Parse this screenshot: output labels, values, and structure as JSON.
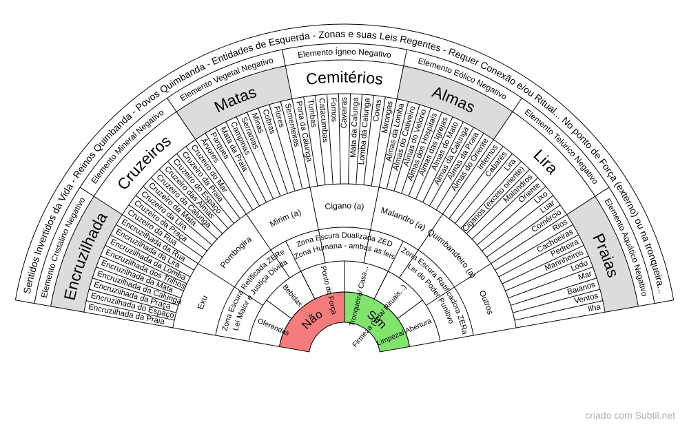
{
  "outer_text": "Sentidos Invertidos da Vida - Reinos Quimbanda - Povos Quimbanda - Entidades de Esquerda - Zonas e suas Leis Regentes - Requer Conexão e/ou Ritual... No ponto de Força (externo) ou na tronqueira...",
  "sectors": [
    {
      "element": "Elemento Cristalino Negativo",
      "title": "Encruzilhada",
      "shaded": true,
      "items": [
        "Encruzilhada da Praia",
        "Encruzilhada do Espaço",
        "Encruzilhada da Praça",
        "Encruzilhada da Calunga",
        "Encruzilhada da Mata",
        "Encruzilhada dos Trilhos",
        "Encruzilhada da Lomba",
        "Encruzilhada da Lira",
        "Encruzilhada da Rua"
      ]
    },
    {
      "element": "Elemento Mineral Negativo",
      "title": "Cruzeiros",
      "shaded": false,
      "items": [
        "Cruzeiro da Rua",
        "Cruzeiro da Praça",
        "Cruzeiro da Lira",
        "Cruzeiro da Mata",
        "Cruzeiro da Calunga",
        "Cruzeiro das Almas",
        "Cruzeiro do Espaço",
        "Cruzeiro da Praia",
        "Cruzeiro do Mar"
      ]
    },
    {
      "element": "Elemento Vegetal Negativo",
      "title": "Matas",
      "shaded": true,
      "items": [
        "Árvores",
        "Parques",
        "Mata da Praia",
        "Campinas",
        "Serranias",
        "Minas",
        "Cobras",
        "Flores",
        "Sementeiras"
      ]
    },
    {
      "element": "Elemento Ígneo Negativo",
      "title": "Cemitérios",
      "shaded": false,
      "items": [
        "Porta da Calunga",
        "Tumbas",
        "Catacumbas",
        "Fornos",
        "Caveiras",
        "Mata da Calunga",
        "Lomba da Calunga",
        "Covas",
        "Mirongas"
      ]
    },
    {
      "element": "Elemento Eólico Negativo",
      "title": "Almas",
      "shaded": true,
      "items": [
        "Almas da Lomba",
        "Almas do Cativeiro",
        "Almas do Velório",
        "Almas dos Hospitais",
        "Almas das Igrejas",
        "Almas do Mato",
        "Almas da Calunga",
        "Almas da Praia",
        "Almas do Oriente"
      ]
    },
    {
      "element": "Elemento Telúrico Negativo",
      "title": "Lira",
      "shaded": false,
      "items": [
        "Infernos",
        "Cabarés",
        "Lira",
        "Ciganos (exceto oriente)",
        "Malandros",
        "Oriente",
        "Lixo",
        "Luar",
        "Comércio"
      ]
    },
    {
      "element": "Elemento Aquático Negativo",
      "title": "Praias",
      "shaded": true,
      "items": [
        "Rios",
        "Cachoeiras",
        "Pedreira",
        "Marinheiros",
        "Lodo",
        "Mar",
        "Baianos",
        "Ventos",
        "Ilha"
      ]
    }
  ],
  "entities": [
    "Exu",
    "Pombogira",
    "Mirim (a)",
    "Cigano (a)",
    "Malandro (a)",
    "Quimbandeiro (a)",
    "Outros"
  ],
  "zones": [
    {
      "lines": [
        "Zona Escura Retificada ZERe",
        "Lei Maior e Justiça Divida"
      ]
    },
    {
      "lines": [
        "Zona Escura Dualizada ZED",
        "Zona Humana - ambas as leis"
      ]
    },
    {
      "lines": [
        "Zona Escura Ratificadora ZERa",
        "Lei do Poder Punitivo"
      ]
    }
  ],
  "rituals": [
    "Oferendas",
    "Bebidas",
    "Ponto de Força",
    "Tronqueira/ Casa...",
    "Firmeza (Vela/ Rituais...)",
    "Limpeza/ Abertura"
  ],
  "answers": [
    {
      "label": "Não",
      "color": "#f47c7c"
    },
    {
      "label": "Sim",
      "color": "#80e46e"
    }
  ],
  "colors": {
    "shade": "#dcdcdc",
    "line": "#000000",
    "background": "#ffffff"
  },
  "credit": "criado com Subtil.net"
}
